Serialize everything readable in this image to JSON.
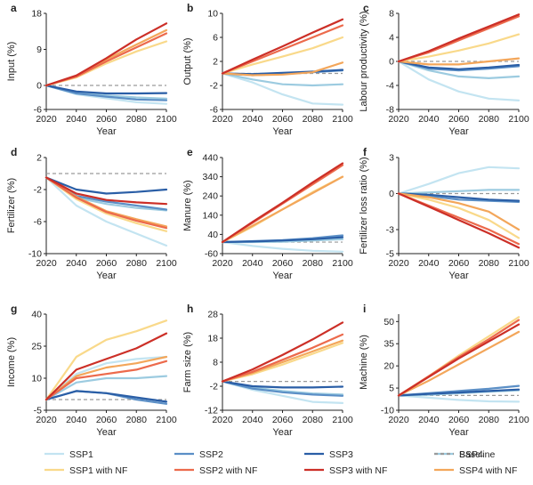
{
  "legend": {
    "placement": "bottom",
    "entries": [
      {
        "key": "ssp1",
        "label": "SSP1",
        "color": "#c3e4f1",
        "dashed": false
      },
      {
        "key": "ssp2",
        "label": "SSP2",
        "color": "#5b8fc6",
        "dashed": false
      },
      {
        "key": "ssp3",
        "label": "SSP3",
        "color": "#2a5ea6",
        "dashed": false
      },
      {
        "key": "ssp4",
        "label": "SSP4",
        "color": "#9ccbe0",
        "dashed": false
      },
      {
        "key": "baseline",
        "label": "Baseline",
        "color": "#9a9a9a",
        "dashed": true
      },
      {
        "key": "ssp1nf",
        "label": "SSP1 with NF",
        "color": "#f9d98a",
        "dashed": false
      },
      {
        "key": "ssp2nf",
        "label": "SSP2 with NF",
        "color": "#ec6a4c",
        "dashed": false
      },
      {
        "key": "ssp3nf",
        "label": "SSP3 with NF",
        "color": "#cc2f27",
        "dashed": false
      },
      {
        "key": "ssp4nf",
        "label": "SSP4 with NF",
        "color": "#f3a65a",
        "dashed": false
      }
    ]
  },
  "chart_data": [
    {
      "letter": "a",
      "type": "line",
      "xlabel": "Year",
      "ylabel": "Input (%)",
      "x": [
        2020,
        2040,
        2060,
        2080,
        2100
      ],
      "xticks": [
        "2020",
        "2040",
        "2060",
        "2080",
        "2100"
      ],
      "ylim": [
        -6,
        18
      ],
      "yticks": [
        -6,
        0,
        9,
        18
      ],
      "baseline": 0,
      "series": [
        {
          "key": "ssp1",
          "values": [
            0,
            -2.2,
            -3.2,
            -4.2,
            -4.6
          ]
        },
        {
          "key": "ssp2",
          "values": [
            0,
            -2.0,
            -2.8,
            -3.5,
            -3.7
          ]
        },
        {
          "key": "ssp3",
          "values": [
            0,
            -1.5,
            -2.0,
            -2.0,
            -1.9
          ]
        },
        {
          "key": "ssp4",
          "values": [
            0,
            -1.7,
            -2.5,
            -3.0,
            -3.3
          ]
        },
        {
          "key": "ssp1nf",
          "values": [
            0,
            2.0,
            5.5,
            8.5,
            11.0
          ]
        },
        {
          "key": "ssp2nf",
          "values": [
            0,
            2.2,
            6.0,
            9.5,
            13.0
          ]
        },
        {
          "key": "ssp3nf",
          "values": [
            0,
            2.5,
            6.8,
            11.5,
            15.5
          ]
        },
        {
          "key": "ssp4nf",
          "values": [
            0,
            2.3,
            6.5,
            10.2,
            13.8
          ]
        }
      ]
    },
    {
      "letter": "b",
      "type": "line",
      "xlabel": "Year",
      "ylabel": "Output (%)",
      "x": [
        2020,
        2040,
        2060,
        2080,
        2100
      ],
      "xticks": [
        "2020",
        "2040",
        "2060",
        "2080",
        "2100"
      ],
      "ylim": [
        -6,
        10
      ],
      "yticks": [
        -6,
        -2,
        2,
        6,
        10
      ],
      "baseline": 0,
      "series": [
        {
          "key": "ssp1",
          "values": [
            0,
            -1.5,
            -3.5,
            -5.0,
            -5.2
          ]
        },
        {
          "key": "ssp2",
          "values": [
            0,
            -0.3,
            -0.1,
            0.2,
            0.5
          ]
        },
        {
          "key": "ssp3",
          "values": [
            0,
            -0.1,
            0.1,
            0.3,
            0.6
          ]
        },
        {
          "key": "ssp4",
          "values": [
            0,
            -1.0,
            -1.8,
            -2.0,
            -1.8
          ]
        },
        {
          "key": "ssp1nf",
          "values": [
            0,
            1.5,
            2.8,
            4.2,
            6.0
          ]
        },
        {
          "key": "ssp2nf",
          "values": [
            0,
            2.0,
            4.0,
            6.0,
            8.0
          ]
        },
        {
          "key": "ssp3nf",
          "values": [
            0,
            2.3,
            4.5,
            6.8,
            9.0
          ]
        },
        {
          "key": "ssp4nf",
          "values": [
            0,
            -0.3,
            -0.2,
            0.2,
            1.8
          ]
        }
      ]
    },
    {
      "letter": "c",
      "type": "line",
      "xlabel": "Year",
      "ylabel": "Labour productivity (%)",
      "x": [
        2020,
        2040,
        2060,
        2080,
        2100
      ],
      "xticks": [
        "2020",
        "2040",
        "2060",
        "2080",
        "2100"
      ],
      "ylim": [
        -8,
        8
      ],
      "yticks": [
        -8,
        -4,
        0,
        4,
        8
      ],
      "baseline": 0,
      "series": [
        {
          "key": "ssp1",
          "values": [
            0,
            -3.0,
            -5.0,
            -6.2,
            -6.5
          ]
        },
        {
          "key": "ssp2",
          "values": [
            0,
            -1.2,
            -1.5,
            -1.2,
            -0.8
          ]
        },
        {
          "key": "ssp3",
          "values": [
            0,
            -1.0,
            -1.3,
            -1.0,
            -0.6
          ]
        },
        {
          "key": "ssp4",
          "values": [
            0,
            -1.5,
            -2.5,
            -2.8,
            -2.5
          ]
        },
        {
          "key": "ssp1nf",
          "values": [
            0,
            0.8,
            1.8,
            3.0,
            4.5
          ]
        },
        {
          "key": "ssp2nf",
          "values": [
            0,
            1.5,
            3.5,
            5.5,
            7.5
          ]
        },
        {
          "key": "ssp3nf",
          "values": [
            0,
            1.7,
            3.8,
            5.8,
            7.8
          ]
        },
        {
          "key": "ssp4nf",
          "values": [
            0,
            -0.5,
            -0.5,
            0.0,
            0.5
          ]
        }
      ]
    },
    {
      "letter": "d",
      "type": "line",
      "xlabel": "Year",
      "ylabel": "Fertilizer (%)",
      "x": [
        2020,
        2040,
        2060,
        2080,
        2100
      ],
      "xticks": [
        "2020",
        "2040",
        "2060",
        "2080",
        "2100"
      ],
      "ylim": [
        -10,
        2
      ],
      "yticks": [
        -10,
        -6,
        -2,
        2
      ],
      "baseline": 0,
      "series": [
        {
          "key": "ssp1",
          "values": [
            -0.5,
            -4.0,
            -6.0,
            -7.5,
            -9.0
          ]
        },
        {
          "key": "ssp2",
          "values": [
            -0.5,
            -2.8,
            -3.5,
            -4.0,
            -4.5
          ]
        },
        {
          "key": "ssp3",
          "values": [
            -0.5,
            -2.0,
            -2.5,
            -2.3,
            -2.0
          ]
        },
        {
          "key": "ssp4",
          "values": [
            -0.5,
            -3.0,
            -3.8,
            -4.3,
            -4.6
          ]
        },
        {
          "key": "ssp1nf",
          "values": [
            -0.5,
            -3.2,
            -5.0,
            -6.2,
            -7.2
          ]
        },
        {
          "key": "ssp2nf",
          "values": [
            -0.5,
            -3.0,
            -4.8,
            -5.9,
            -6.8
          ]
        },
        {
          "key": "ssp3nf",
          "values": [
            -0.5,
            -2.5,
            -3.3,
            -3.6,
            -3.8
          ]
        },
        {
          "key": "ssp4nf",
          "values": [
            -0.5,
            -2.9,
            -4.7,
            -5.7,
            -6.6
          ]
        }
      ]
    },
    {
      "letter": "e",
      "type": "line",
      "xlabel": "Year",
      "ylabel": "Manure (%)",
      "x": [
        2020,
        2040,
        2060,
        2080,
        2100
      ],
      "xticks": [
        "2020",
        "2040",
        "2060",
        "2080",
        "2100"
      ],
      "ylim": [
        -60,
        440
      ],
      "yticks": [
        -60,
        40,
        140,
        240,
        340,
        440
      ],
      "baseline": 0,
      "series": [
        {
          "key": "ssp1",
          "values": [
            0,
            -20,
            -35,
            -45,
            -50
          ]
        },
        {
          "key": "ssp2",
          "values": [
            0,
            5,
            10,
            20,
            35
          ]
        },
        {
          "key": "ssp3",
          "values": [
            0,
            3,
            8,
            15,
            25
          ]
        },
        {
          "key": "ssp4",
          "values": [
            0,
            0,
            2,
            8,
            15
          ]
        },
        {
          "key": "ssp1nf",
          "values": [
            0,
            80,
            170,
            260,
            340
          ]
        },
        {
          "key": "ssp2nf",
          "values": [
            0,
            100,
            200,
            300,
            400
          ]
        },
        {
          "key": "ssp3nf",
          "values": [
            0,
            105,
            205,
            310,
            410
          ]
        },
        {
          "key": "ssp4nf",
          "values": [
            0,
            85,
            170,
            255,
            340
          ]
        }
      ]
    },
    {
      "letter": "f",
      "type": "line",
      "xlabel": "Year",
      "ylabel": "Fertilizer loss ratio (%)",
      "x": [
        2020,
        2040,
        2060,
        2080,
        2100
      ],
      "xticks": [
        "2020",
        "2040",
        "2060",
        "2080",
        "2100"
      ],
      "ylim": [
        -5,
        3
      ],
      "yticks": [
        -5,
        -3,
        0,
        3
      ],
      "baseline": 0,
      "series": [
        {
          "key": "ssp1",
          "values": [
            0,
            0.8,
            1.7,
            2.2,
            2.1
          ]
        },
        {
          "key": "ssp2",
          "values": [
            0,
            -0.2,
            -0.5,
            -0.6,
            -0.7
          ]
        },
        {
          "key": "ssp3",
          "values": [
            0,
            -0.1,
            -0.3,
            -0.5,
            -0.6
          ]
        },
        {
          "key": "ssp4",
          "values": [
            0,
            0.1,
            0.2,
            0.3,
            0.3
          ]
        },
        {
          "key": "ssp1nf",
          "values": [
            0,
            -0.5,
            -1.2,
            -2.2,
            -3.7
          ]
        },
        {
          "key": "ssp2nf",
          "values": [
            0,
            -1.0,
            -2.0,
            -3.0,
            -4.2
          ]
        },
        {
          "key": "ssp3nf",
          "values": [
            0,
            -1.1,
            -2.2,
            -3.3,
            -4.5
          ]
        },
        {
          "key": "ssp4nf",
          "values": [
            0,
            -0.3,
            -0.8,
            -1.5,
            -3.0
          ]
        }
      ]
    },
    {
      "letter": "g",
      "type": "line",
      "xlabel": "Year",
      "ylabel": "Income (%)",
      "x": [
        2020,
        2040,
        2060,
        2080,
        2100
      ],
      "xticks": [
        "2020",
        "2040",
        "2060",
        "2080",
        "2100"
      ],
      "ylim": [
        -5,
        40
      ],
      "yticks": [
        -5,
        10,
        25,
        40
      ],
      "baseline": 0,
      "series": [
        {
          "key": "ssp1",
          "values": [
            0,
            12,
            17,
            19,
            20
          ]
        },
        {
          "key": "ssp2",
          "values": [
            0,
            4,
            3,
            0,
            -2
          ]
        },
        {
          "key": "ssp3",
          "values": [
            0,
            4,
            3,
            1,
            -1
          ]
        },
        {
          "key": "ssp4",
          "values": [
            0,
            8,
            10,
            10,
            11
          ]
        },
        {
          "key": "ssp1nf",
          "values": [
            0,
            20,
            28,
            32,
            37
          ]
        },
        {
          "key": "ssp2nf",
          "values": [
            0,
            10,
            12,
            14,
            18
          ]
        },
        {
          "key": "ssp3nf",
          "values": [
            0,
            14,
            19,
            24,
            31
          ]
        },
        {
          "key": "ssp4nf",
          "values": [
            0,
            11,
            15,
            17,
            20
          ]
        }
      ]
    },
    {
      "letter": "h",
      "type": "line",
      "xlabel": "Year",
      "ylabel": "Farm size (%)",
      "x": [
        2020,
        2040,
        2060,
        2080,
        2100
      ],
      "xticks": [
        "2020",
        "2040",
        "2060",
        "2080",
        "2100"
      ],
      "ylim": [
        -12,
        28
      ],
      "yticks": [
        -12,
        -2,
        8,
        18,
        28
      ],
      "baseline": 0,
      "series": [
        {
          "key": "ssp1",
          "values": [
            0,
            -3.5,
            -6.0,
            -8.5,
            -9.0
          ]
        },
        {
          "key": "ssp2",
          "values": [
            0,
            -3.0,
            -4.5,
            -5.5,
            -6.0
          ]
        },
        {
          "key": "ssp3",
          "values": [
            0,
            -2.0,
            -2.5,
            -2.5,
            -2.2
          ]
        },
        {
          "key": "ssp4",
          "values": [
            0,
            -2.5,
            -4.0,
            -5.0,
            -5.5
          ]
        },
        {
          "key": "ssp1nf",
          "values": [
            0,
            3.0,
            7.0,
            11.5,
            16.0
          ]
        },
        {
          "key": "ssp2nf",
          "values": [
            0,
            4.0,
            9.0,
            14.0,
            19.5
          ]
        },
        {
          "key": "ssp3nf",
          "values": [
            0,
            5.0,
            11.0,
            17.5,
            24.5
          ]
        },
        {
          "key": "ssp4nf",
          "values": [
            0,
            3.5,
            8.0,
            12.5,
            17.0
          ]
        }
      ]
    },
    {
      "letter": "i",
      "type": "line",
      "xlabel": "Year",
      "ylabel": "Machine (%)",
      "x": [
        2020,
        2040,
        2060,
        2080,
        2100
      ],
      "xticks": [
        "2020",
        "2040",
        "2060",
        "2080",
        "2100"
      ],
      "ylim": [
        -10,
        55
      ],
      "yticks": [
        -10,
        5,
        20,
        35,
        50
      ],
      "baseline": 0,
      "series": [
        {
          "key": "ssp1",
          "values": [
            0,
            -1.5,
            -3.0,
            -4.0,
            -4.2
          ]
        },
        {
          "key": "ssp2",
          "values": [
            0,
            1.5,
            3.0,
            4.5,
            6.5
          ]
        },
        {
          "key": "ssp3",
          "values": [
            0,
            1.0,
            2.0,
            3.0,
            4.0
          ]
        },
        {
          "key": "ssp4",
          "values": [
            0,
            0.5,
            1.5,
            2.5,
            3.5
          ]
        },
        {
          "key": "ssp1nf",
          "values": [
            0,
            13.0,
            27.0,
            40.0,
            53.0
          ]
        },
        {
          "key": "ssp2nf",
          "values": [
            0,
            13.0,
            26.0,
            38.0,
            51.0
          ]
        },
        {
          "key": "ssp3nf",
          "values": [
            0,
            12.5,
            25.0,
            36.5,
            48.0
          ]
        },
        {
          "key": "ssp4nf",
          "values": [
            0,
            10.0,
            21.0,
            32.0,
            43.0
          ]
        }
      ]
    }
  ]
}
